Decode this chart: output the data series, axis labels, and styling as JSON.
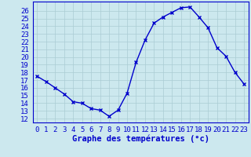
{
  "temperatures": [
    17.5,
    16.8,
    16.0,
    15.2,
    14.2,
    14.0,
    13.3,
    13.1,
    12.3,
    13.1,
    15.3,
    19.3,
    22.2,
    24.4,
    25.2,
    25.8,
    26.4,
    26.5,
    25.2,
    23.8,
    21.2,
    20.1,
    18.0,
    16.5
  ],
  "line_color": "#0000cc",
  "marker_color": "#0000cc",
  "bg_color": "#cce8ee",
  "grid_color": "#aaccd4",
  "xlabel": "Graphe des températures (°c)",
  "ylim_min": 11.5,
  "ylim_max": 27.2,
  "yticks": [
    12,
    13,
    14,
    15,
    16,
    17,
    18,
    19,
    20,
    21,
    22,
    23,
    24,
    25,
    26
  ],
  "xticks": [
    0,
    1,
    2,
    3,
    4,
    5,
    6,
    7,
    8,
    9,
    10,
    11,
    12,
    13,
    14,
    15,
    16,
    17,
    18,
    19,
    20,
    21,
    22,
    23
  ],
  "tick_fontsize": 6.5,
  "xlabel_fontsize": 7.5,
  "xlabel_color": "#0000cc",
  "tick_color": "#0000cc",
  "spine_color": "#0000cc"
}
